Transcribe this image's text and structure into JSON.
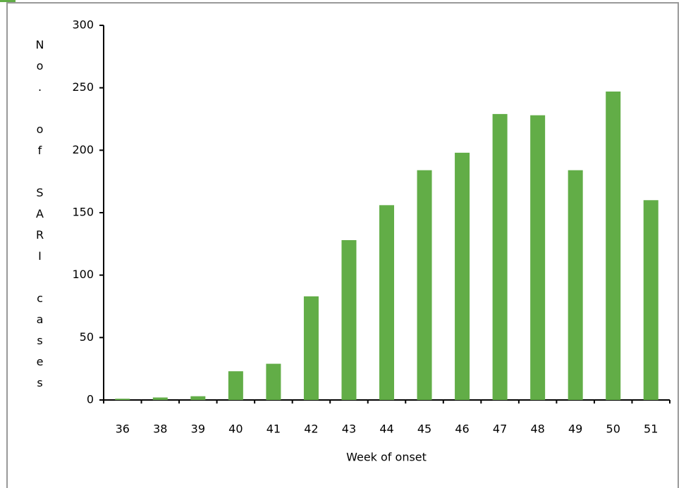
{
  "chart_data": {
    "type": "bar",
    "y_label": "No. of SARI cases",
    "x_label": "Week of onset",
    "categories": [
      "36",
      "38",
      "39",
      "40",
      "41",
      "42",
      "43",
      "44",
      "45",
      "46",
      "47",
      "48",
      "49",
      "50",
      "51"
    ],
    "values": [
      1,
      2,
      3,
      23,
      29,
      83,
      128,
      156,
      184,
      198,
      229,
      228,
      184,
      247,
      160
    ],
    "color": "#62ad47",
    "ylim": [
      0,
      300
    ],
    "yticks": [
      0,
      50,
      100,
      150,
      200,
      250,
      300
    ],
    "grid": false
  }
}
